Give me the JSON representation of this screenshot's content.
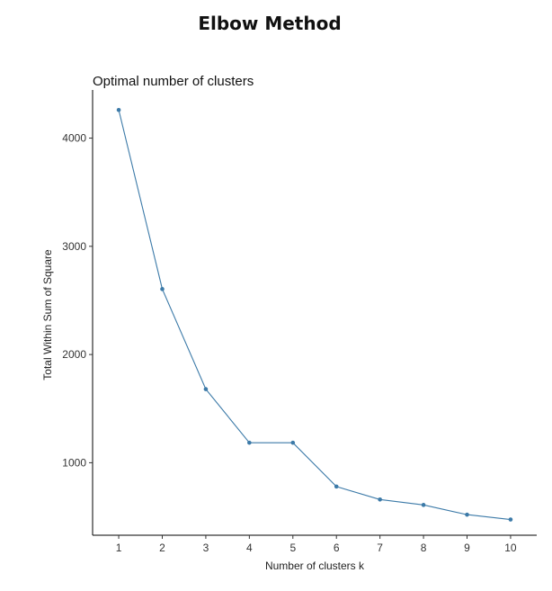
{
  "figure": {
    "title": "Elbow Method"
  },
  "chart_data": {
    "type": "line",
    "title": "Optimal number of clusters",
    "xlabel": "Number of clusters k",
    "ylabel": "Total Within Sum of Square",
    "x": [
      1,
      2,
      3,
      4,
      5,
      6,
      7,
      8,
      9,
      10
    ],
    "y_ticks": [
      1000,
      2000,
      3000,
      4000
    ],
    "xlim": [
      0.4,
      10.6
    ],
    "ylim": [
      330,
      4445
    ],
    "grid": false,
    "legend": "none",
    "series": [
      {
        "values": [
          4260,
          2605,
          1680,
          1185,
          1185,
          780,
          660,
          610,
          520,
          475
        ],
        "color": "#3c7aa8"
      }
    ]
  }
}
